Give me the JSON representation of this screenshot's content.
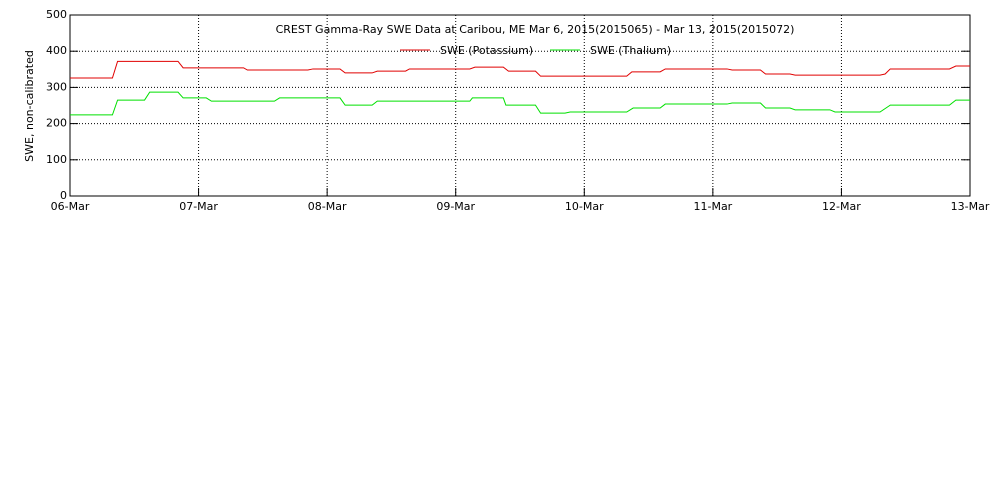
{
  "chart_data": {
    "type": "line",
    "title": "CREST Gamma-Ray SWE Data at Caribou, ME   Mar  6, 2015(2015065) - Mar 13, 2015(2015072)",
    "y_label": "SWE, non-calibrated",
    "xlim": [
      0,
      7
    ],
    "xticks": [
      {
        "value": 0,
        "label": "06-Mar"
      },
      {
        "value": 1,
        "label": "07-Mar"
      },
      {
        "value": 2,
        "label": "08-Mar"
      },
      {
        "value": 3,
        "label": "09-Mar"
      },
      {
        "value": 4,
        "label": "10-Mar"
      },
      {
        "value": 5,
        "label": "11-Mar"
      },
      {
        "value": 6,
        "label": "12-Mar"
      },
      {
        "value": 7,
        "label": "13-Mar"
      }
    ],
    "ylim": [
      0,
      500
    ],
    "yticks": [
      0,
      100,
      200,
      300,
      400,
      500
    ],
    "grid": true,
    "series": [
      {
        "name": "SWE (Potassium)",
        "color": "#e00000",
        "x": [
          0,
          0.33,
          0.37,
          0.84,
          0.88,
          1.35,
          1.38,
          1.85,
          1.89,
          2.1,
          2.14,
          2.35,
          2.39,
          2.61,
          2.64,
          3.11,
          3.15,
          3.37,
          3.41,
          3.62,
          3.66,
          4.33,
          4.37,
          4.59,
          4.63,
          5.11,
          5.15,
          5.37,
          5.41,
          5.6,
          5.64,
          6.3,
          6.34,
          6.38,
          6.84,
          6.89,
          7
        ],
        "values": [
          326,
          326,
          372,
          372,
          354,
          354,
          348,
          348,
          351,
          351,
          340,
          340,
          345,
          345,
          351,
          351,
          356,
          356,
          345,
          345,
          331,
          331,
          343,
          343,
          351,
          351,
          348,
          348,
          337,
          337,
          334,
          334,
          337,
          351,
          351,
          359,
          359
        ]
      },
      {
        "name": "SWE (Thalium)",
        "color": "#00e000",
        "x": [
          0,
          0.33,
          0.37,
          0.58,
          0.62,
          0.84,
          0.88,
          1.06,
          1.1,
          1.59,
          1.63,
          2.1,
          2.14,
          2.35,
          2.39,
          3.11,
          3.13,
          3.37,
          3.39,
          3.62,
          3.66,
          3.85,
          3.89,
          4.33,
          4.38,
          4.59,
          4.63,
          5.11,
          5.15,
          5.37,
          5.41,
          5.6,
          5.64,
          5.91,
          5.95,
          6.3,
          6.38,
          6.84,
          6.89,
          7
        ],
        "values": [
          224,
          224,
          265,
          265,
          287,
          287,
          271,
          271,
          262,
          262,
          271,
          271,
          251,
          251,
          262,
          262,
          271,
          271,
          251,
          251,
          229,
          229,
          232,
          232,
          243,
          243,
          254,
          254,
          257,
          257,
          243,
          243,
          238,
          238,
          232,
          232,
          251,
          251,
          265,
          265
        ]
      }
    ]
  }
}
